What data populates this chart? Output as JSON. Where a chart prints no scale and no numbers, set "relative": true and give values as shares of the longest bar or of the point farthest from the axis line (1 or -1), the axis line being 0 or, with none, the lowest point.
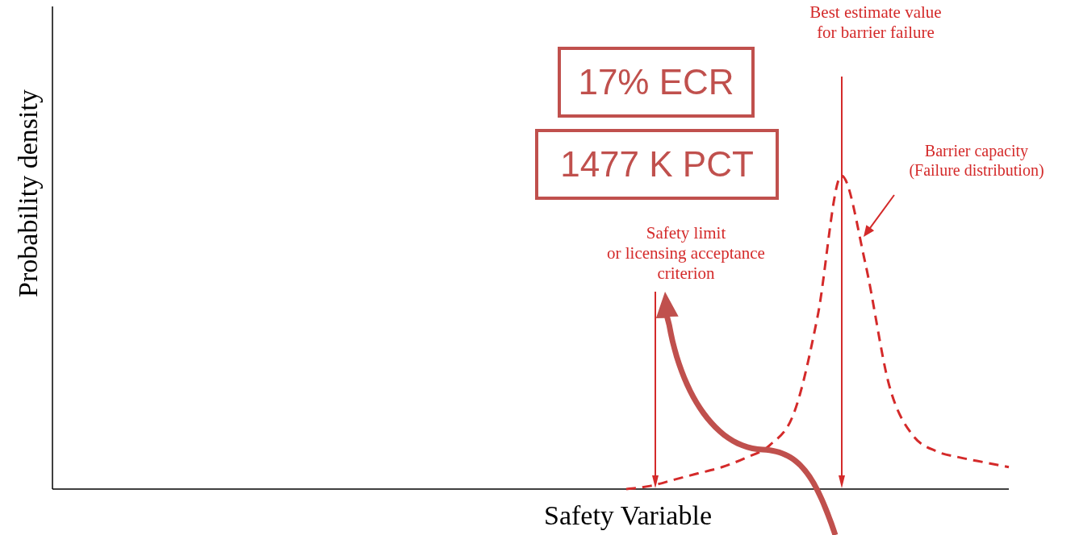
{
  "chart_data": {
    "type": "line",
    "relative": true,
    "xlabel": "Safety Variable",
    "ylabel": "Probability density",
    "categories": [
      null,
      null,
      null,
      null,
      null,
      null,
      null,
      null,
      null,
      null,
      null,
      null,
      null,
      null,
      null,
      null,
      null,
      null,
      null,
      null,
      null,
      null,
      null,
      null,
      null,
      null,
      null,
      null,
      null,
      null,
      null,
      null,
      null,
      null,
      null,
      null,
      null,
      null,
      null,
      null,
      null
    ],
    "series": [
      {
        "color": "#d42a2a",
        "line_style": "dashed",
        "values": [
          null,
          null,
          null,
          null,
          null,
          null,
          null,
          null,
          null,
          null,
          null,
          null,
          null,
          null,
          null,
          null,
          null,
          null,
          null,
          null,
          null,
          null,
          null,
          null,
          0,
          0.01,
          0.03,
          0.05,
          0.07,
          0.1,
          0.14,
          0.24,
          0.55,
          1,
          0.72,
          0.33,
          0.17,
          0.12,
          0.1,
          0.085,
          0.07
        ]
      }
    ],
    "annotations": [
      "17% ECR",
      "1477 K PCT",
      "Barrier capacity\n(Failure distribution)",
      "Safety limit\nor licensing acceptance\ncriterion",
      "Best estimate value\nfor barrier failure"
    ]
  }
}
